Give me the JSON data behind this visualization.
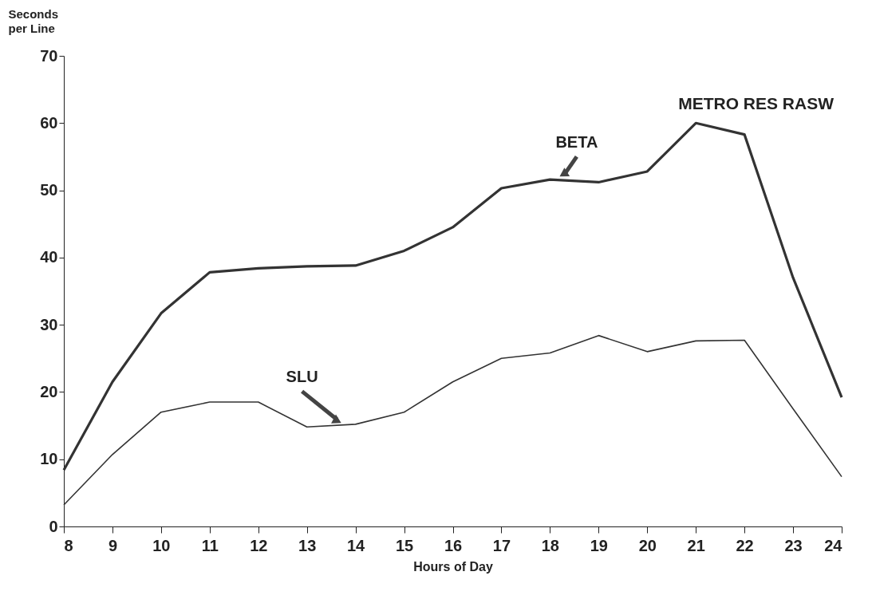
{
  "chart_data": {
    "type": "line",
    "title": "METRO RES RASW",
    "xlabel": "Hours of Day",
    "ylabel": "Seconds per Line",
    "x": [
      8,
      9,
      10,
      11,
      12,
      13,
      14,
      15,
      16,
      17,
      18,
      19,
      20,
      21,
      22,
      23,
      24
    ],
    "series": [
      {
        "name": "BETA",
        "color": "#333333",
        "values": [
          8.4,
          21.5,
          31.7,
          37.8,
          38.4,
          38.7,
          38.8,
          41.0,
          44.5,
          50.3,
          51.6,
          51.2,
          52.8,
          60.0,
          58.3,
          37,
          19.2
        ]
      },
      {
        "name": "SLU",
        "color": "#333333",
        "values": [
          3.2,
          10.7,
          17.0,
          18.5,
          18.5,
          14.8,
          15.2,
          17.0,
          21.5,
          25.0,
          25.8,
          28.4,
          26.0,
          27.6,
          27.7,
          17.5,
          7.4
        ]
      }
    ],
    "xlim": [
      8,
      24
    ],
    "xticks": [
      8,
      9,
      10,
      11,
      12,
      13,
      14,
      15,
      16,
      17,
      18,
      19,
      20,
      21,
      22,
      23,
      24
    ],
    "ylim": [
      0,
      70
    ],
    "yticks": [
      0,
      10,
      20,
      30,
      40,
      50,
      60,
      70
    ],
    "grid": false,
    "legend": false,
    "marker": "none",
    "line_style": "solid"
  }
}
